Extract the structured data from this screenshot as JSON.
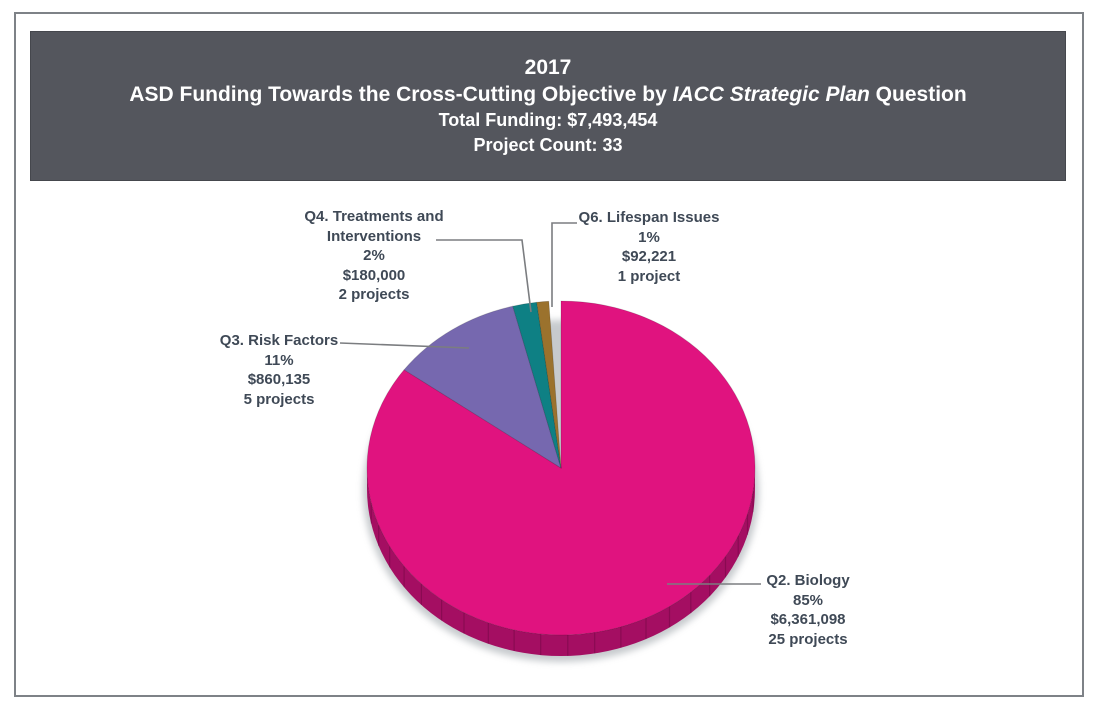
{
  "header": {
    "year": "2017",
    "title_pre": "ASD Funding Towards the Cross-Cutting Objective by ",
    "title_italic": "IACC Strategic Plan",
    "title_post": " Question",
    "total_funding": "Total Funding: $7,493,454",
    "project_count": "Project Count: 33"
  },
  "colors": {
    "header_background": "#54565D",
    "page_border": "#7E8287",
    "label_text": "#3F4956",
    "leader_line": "#7B7D80",
    "pie_rim": "#A40E62"
  },
  "chart_data": {
    "type": "pie",
    "style": "3d",
    "title": "2017 ASD Funding Towards the Cross-Cutting Objective by IACC Strategic Plan Question",
    "total_funding_label": "Total Funding: $7,493,454",
    "total_funding_usd": 7493454,
    "project_count": 33,
    "start_angle_deg": 0,
    "direction": "clockwise",
    "legend_position": "callouts-with-leader-lines",
    "slices": [
      {
        "key": "q2",
        "label": "Q2. Biology",
        "percent": 85,
        "percent_text": "85%",
        "amount": "$6,361,098",
        "amount_usd": 6361098,
        "projects": 25,
        "projects_text": "25 projects",
        "color": "#E0137F",
        "side_color": "#A40E62"
      },
      {
        "key": "q3",
        "label": "Q3. Risk Factors",
        "percent": 11,
        "percent_text": "11%",
        "amount": "$860,135",
        "amount_usd": 860135,
        "projects": 5,
        "projects_text": "5 projects",
        "color": "#7668AF"
      },
      {
        "key": "q4",
        "label": "Q4. Treatments and Interventions",
        "percent": 2,
        "percent_text": "2%",
        "amount": "$180,000",
        "amount_usd": 180000,
        "projects": 2,
        "projects_text": "2 projects",
        "color": "#0E8084"
      },
      {
        "key": "q6",
        "label": "Q6. Lifespan Issues",
        "percent": 1,
        "percent_text": "1%",
        "amount": "$92,221",
        "amount_usd": 92221,
        "projects": 1,
        "projects_text": "1 project",
        "color": "#9B722D"
      }
    ]
  }
}
